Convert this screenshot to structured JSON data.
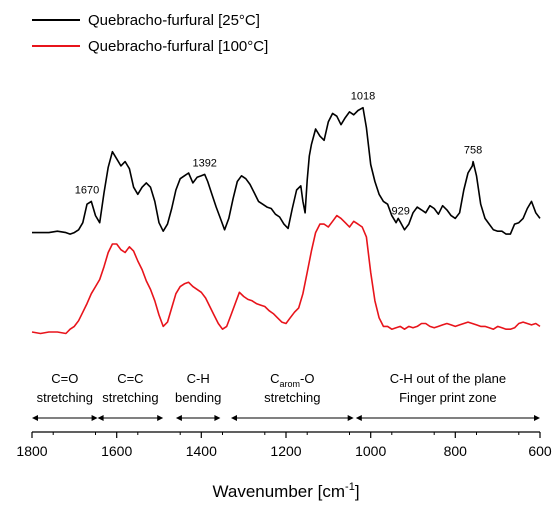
{
  "chart_data": {
    "type": "line",
    "title": "",
    "xlabel": "Wavenumber [cm",
    "xlabel_superscript": "-1",
    "xlabel_close": "]",
    "xlim": [
      1800,
      600
    ],
    "x_reversed": true,
    "x_ticks": [
      1800,
      1600,
      1400,
      1200,
      1000,
      800,
      600
    ],
    "legend_placement": "top-left",
    "grid": false,
    "series": [
      {
        "name": "Quebracho-furfural [25°C]",
        "color": "#000000",
        "x": [
          1800,
          1780,
          1760,
          1740,
          1720,
          1710,
          1700,
          1690,
          1680,
          1670,
          1660,
          1650,
          1640,
          1630,
          1620,
          1610,
          1600,
          1590,
          1580,
          1570,
          1560,
          1550,
          1540,
          1530,
          1520,
          1510,
          1500,
          1490,
          1480,
          1470,
          1460,
          1450,
          1440,
          1430,
          1420,
          1410,
          1400,
          1392,
          1385,
          1375,
          1365,
          1355,
          1345,
          1335,
          1325,
          1315,
          1305,
          1295,
          1285,
          1275,
          1265,
          1255,
          1245,
          1235,
          1225,
          1215,
          1205,
          1195,
          1185,
          1175,
          1165,
          1160,
          1155,
          1150,
          1145,
          1140,
          1130,
          1120,
          1110,
          1100,
          1090,
          1080,
          1070,
          1060,
          1050,
          1040,
          1030,
          1018,
          1010,
          1000,
          990,
          980,
          970,
          960,
          950,
          940,
          935,
          929,
          920,
          910,
          900,
          890,
          880,
          870,
          860,
          850,
          840,
          830,
          820,
          810,
          800,
          790,
          780,
          770,
          760,
          758,
          750,
          740,
          730,
          720,
          710,
          700,
          690,
          680,
          670,
          660,
          650,
          640,
          630,
          620,
          610,
          600
        ],
        "y": [
          0.08,
          0.08,
          0.08,
          0.09,
          0.08,
          0.07,
          0.08,
          0.1,
          0.15,
          0.28,
          0.3,
          0.2,
          0.15,
          0.36,
          0.54,
          0.65,
          0.6,
          0.55,
          0.58,
          0.53,
          0.4,
          0.35,
          0.4,
          0.43,
          0.4,
          0.3,
          0.15,
          0.09,
          0.14,
          0.25,
          0.38,
          0.46,
          0.48,
          0.5,
          0.43,
          0.47,
          0.48,
          0.49,
          0.44,
          0.35,
          0.26,
          0.18,
          0.1,
          0.18,
          0.32,
          0.44,
          0.48,
          0.46,
          0.42,
          0.36,
          0.3,
          0.28,
          0.26,
          0.25,
          0.21,
          0.19,
          0.14,
          0.11,
          0.25,
          0.38,
          0.41,
          0.3,
          0.22,
          0.45,
          0.62,
          0.7,
          0.81,
          0.76,
          0.73,
          0.86,
          0.92,
          0.9,
          0.84,
          0.89,
          0.93,
          0.91,
          0.94,
          0.96,
          0.82,
          0.56,
          0.44,
          0.35,
          0.3,
          0.28,
          0.2,
          0.15,
          0.18,
          0.15,
          0.1,
          0.14,
          0.22,
          0.26,
          0.24,
          0.22,
          0.27,
          0.25,
          0.21,
          0.27,
          0.24,
          0.2,
          0.18,
          0.22,
          0.38,
          0.5,
          0.55,
          0.58,
          0.48,
          0.28,
          0.18,
          0.14,
          0.1,
          0.09,
          0.09,
          0.07,
          0.07,
          0.14,
          0.15,
          0.18,
          0.25,
          0.3,
          0.22,
          0.18
        ]
      },
      {
        "name": "Quebracho-furfural [100°C]",
        "color": "#e8141b",
        "x": [
          1800,
          1780,
          1760,
          1740,
          1720,
          1710,
          1700,
          1690,
          1680,
          1670,
          1660,
          1650,
          1640,
          1630,
          1620,
          1610,
          1600,
          1590,
          1580,
          1570,
          1560,
          1550,
          1540,
          1530,
          1520,
          1510,
          1500,
          1490,
          1480,
          1470,
          1460,
          1450,
          1440,
          1430,
          1420,
          1410,
          1400,
          1390,
          1380,
          1370,
          1360,
          1350,
          1340,
          1330,
          1320,
          1310,
          1300,
          1290,
          1280,
          1270,
          1260,
          1250,
          1240,
          1230,
          1220,
          1210,
          1200,
          1190,
          1180,
          1170,
          1160,
          1150,
          1140,
          1130,
          1120,
          1110,
          1100,
          1090,
          1080,
          1070,
          1060,
          1050,
          1040,
          1030,
          1020,
          1010,
          1000,
          990,
          980,
          970,
          960,
          950,
          940,
          930,
          920,
          910,
          900,
          890,
          880,
          870,
          860,
          850,
          840,
          830,
          820,
          810,
          800,
          790,
          780,
          770,
          760,
          750,
          740,
          730,
          720,
          710,
          700,
          690,
          680,
          670,
          660,
          650,
          640,
          630,
          620,
          610,
          600
        ],
        "y": [
          -0.62,
          -0.63,
          -0.62,
          -0.62,
          -0.63,
          -0.6,
          -0.58,
          -0.54,
          -0.48,
          -0.42,
          -0.35,
          -0.3,
          -0.25,
          -0.16,
          -0.06,
          0.0,
          0.0,
          -0.04,
          -0.06,
          -0.02,
          -0.05,
          -0.12,
          -0.18,
          -0.26,
          -0.32,
          -0.4,
          -0.5,
          -0.58,
          -0.55,
          -0.45,
          -0.35,
          -0.3,
          -0.28,
          -0.27,
          -0.3,
          -0.32,
          -0.34,
          -0.38,
          -0.44,
          -0.5,
          -0.56,
          -0.6,
          -0.58,
          -0.5,
          -0.42,
          -0.34,
          -0.37,
          -0.39,
          -0.4,
          -0.42,
          -0.43,
          -0.44,
          -0.47,
          -0.49,
          -0.52,
          -0.55,
          -0.56,
          -0.52,
          -0.48,
          -0.45,
          -0.35,
          -0.2,
          -0.05,
          0.08,
          0.14,
          0.14,
          0.12,
          0.16,
          0.2,
          0.18,
          0.15,
          0.12,
          0.16,
          0.14,
          0.12,
          0.05,
          -0.2,
          -0.4,
          -0.52,
          -0.58,
          -0.58,
          -0.6,
          -0.59,
          -0.58,
          -0.6,
          -0.58,
          -0.59,
          -0.58,
          -0.56,
          -0.56,
          -0.58,
          -0.59,
          -0.58,
          -0.57,
          -0.56,
          -0.57,
          -0.58,
          -0.57,
          -0.56,
          -0.55,
          -0.56,
          -0.57,
          -0.58,
          -0.58,
          -0.59,
          -0.6,
          -0.58,
          -0.59,
          -0.6,
          -0.6,
          -0.59,
          -0.56,
          -0.55,
          -0.56,
          -0.57,
          -0.56,
          -0.58
        ]
      }
    ],
    "peak_labels": [
      {
        "text": "1670",
        "x": 1670,
        "y": 0.3
      },
      {
        "text": "1392",
        "x": 1392,
        "y": 0.49
      },
      {
        "text": "1018",
        "x": 1018,
        "y": 0.96
      },
      {
        "text": "929",
        "x": 929,
        "y": 0.15
      },
      {
        "text": "758",
        "x": 758,
        "y": 0.58
      }
    ],
    "bands": [
      {
        "lines": [
          "C=O",
          "stretching"
        ],
        "from": 1800,
        "to": 1645
      },
      {
        "lines": [
          "C=C",
          "stretching"
        ],
        "from": 1645,
        "to": 1490
      },
      {
        "lines": [
          "C-H",
          "bending"
        ],
        "from": 1460,
        "to": 1355
      },
      {
        "lines": [
          "Cₐᵣₒₘ-O",
          "stretching"
        ],
        "carom": true,
        "from": 1330,
        "to": 1040
      },
      {
        "lines": [
          "C-H out of the plane",
          "Finger print zone"
        ],
        "from": 1035,
        "to": 600
      }
    ],
    "carom_text": {
      "main": "C",
      "sub": "arom",
      "tail": "-O"
    }
  }
}
